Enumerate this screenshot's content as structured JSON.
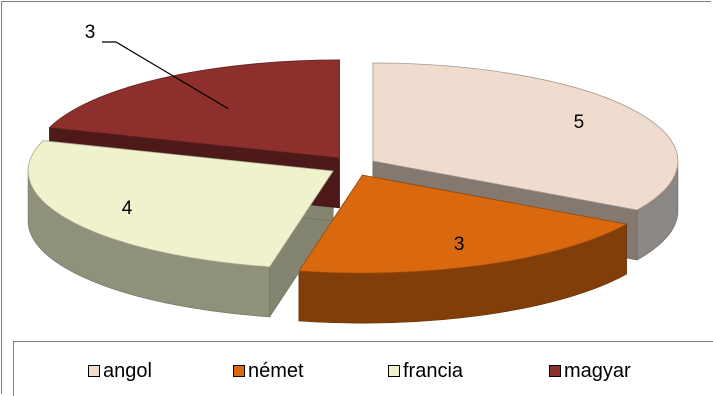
{
  "chart_data": {
    "type": "pie",
    "style": "3d-exploded",
    "categories": [
      "angol",
      "német",
      "francia",
      "magyar"
    ],
    "values": [
      5,
      3,
      4,
      3
    ],
    "colors": [
      "#efdcce",
      "#d9680e",
      "#f0f2cd",
      "#8c2f2d"
    ],
    "data_labels": [
      "5",
      "3",
      "4",
      "3"
    ],
    "legend_position": "bottom"
  }
}
